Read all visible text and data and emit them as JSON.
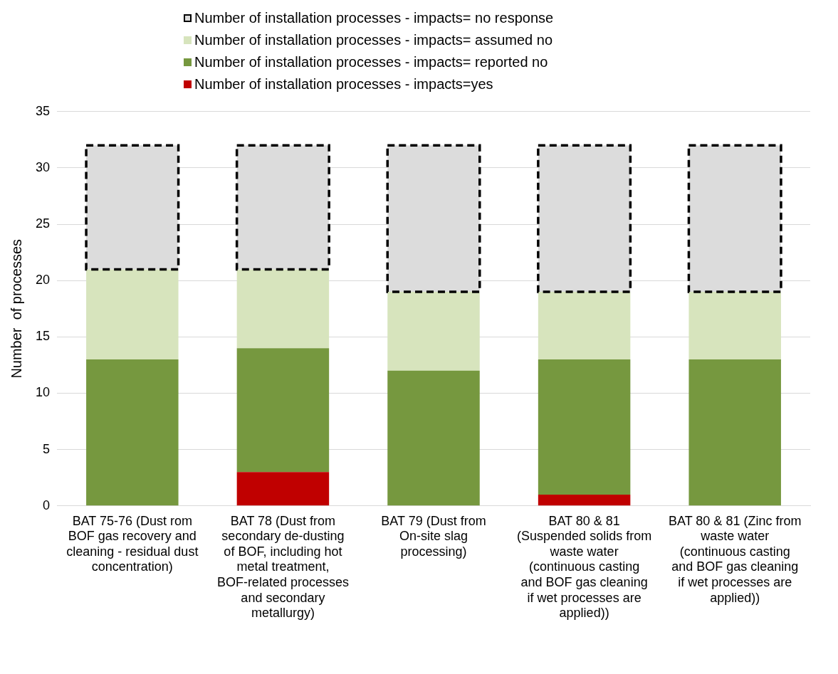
{
  "chart_data": {
    "type": "bar",
    "stacked": true,
    "ylabel": "Number  of processes",
    "categories": [
      "BAT 75-76 (Dust rom BOF gas recovery and cleaning - residual dust concentration)",
      "BAT 78 (Dust from secondary de-dusting of BOF, including hot metal treatment, BOF-related processes and secondary metallurgy)",
      "BAT 79 (Dust from On-site slag processing)",
      "BAT 80 & 81 (Suspended solids from waste water (continuous casting and BOF gas cleaning if wet processes are applied))",
      "BAT 80 & 81 (Zinc from waste water (continuous casting and BOF gas cleaning if wet processes are applied))"
    ],
    "series": [
      {
        "name": "Number of installation processes - impacts=yes",
        "color": "#c00000",
        "values": [
          0,
          3,
          0,
          1,
          0
        ]
      },
      {
        "name": "Number of installation processes - impacts= reported no",
        "color": "#76983f",
        "values": [
          13,
          11,
          12,
          12,
          13
        ]
      },
      {
        "name": "Number of installation processes - impacts= assumed no",
        "color": "#d7e4bd",
        "values": [
          8,
          7,
          7,
          6,
          6
        ]
      },
      {
        "name": "Number of installation processes - impacts= no response",
        "color": "#dcdcdc",
        "line_style": "dashed",
        "values": [
          11,
          11,
          13,
          13,
          13
        ]
      }
    ],
    "ylim": [
      0,
      35
    ],
    "yticks": [
      0,
      5,
      10,
      15,
      20,
      25,
      30,
      35
    ],
    "grid": "y",
    "legend": "top"
  }
}
